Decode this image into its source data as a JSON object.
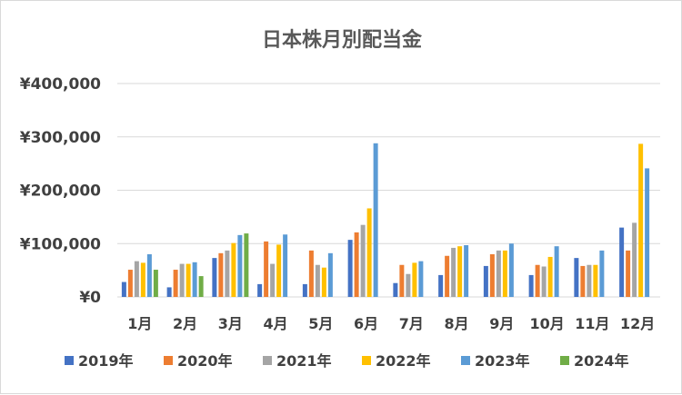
{
  "chart_data": {
    "type": "bar",
    "title": "日本株月別配当金",
    "xlabel": "",
    "ylabel": "",
    "ylim": [
      0,
      400000
    ],
    "y_ticks": [
      0,
      100000,
      200000,
      300000,
      400000
    ],
    "y_tick_labels": [
      "¥0",
      "¥100,000",
      "¥200,000",
      "¥300,000",
      "¥400,000"
    ],
    "grid": true,
    "legend": "bottom",
    "categories": [
      "1月",
      "2月",
      "3月",
      "4月",
      "5月",
      "6月",
      "7月",
      "8月",
      "9月",
      "10月",
      "11月",
      "12月"
    ],
    "series": [
      {
        "name": "2019年",
        "color": "#4472c4",
        "values": [
          28000,
          18000,
          73000,
          24000,
          24000,
          107000,
          26000,
          41000,
          58000,
          41000,
          73000,
          130000
        ]
      },
      {
        "name": "2020年",
        "color": "#ed7d31",
        "values": [
          51000,
          51000,
          82000,
          104000,
          87000,
          121000,
          60000,
          77000,
          80000,
          60000,
          58000,
          87000
        ]
      },
      {
        "name": "2021年",
        "color": "#a5a5a5",
        "values": [
          67000,
          62000,
          87000,
          62000,
          60000,
          135000,
          43000,
          92000,
          87000,
          57000,
          60000,
          139000
        ]
      },
      {
        "name": "2022年",
        "color": "#ffc000",
        "values": [
          64000,
          62000,
          101000,
          98000,
          55000,
          166000,
          64000,
          95000,
          87000,
          75000,
          60000,
          287000
        ]
      },
      {
        "name": "2023年",
        "color": "#5b9bd5",
        "values": [
          80000,
          65000,
          116000,
          117000,
          82000,
          288000,
          67000,
          97000,
          100000,
          95000,
          87000,
          241000
        ]
      },
      {
        "name": "2024年",
        "color": "#70ad47",
        "values": [
          51000,
          39000,
          119000,
          null,
          null,
          null,
          null,
          null,
          null,
          null,
          null,
          null
        ]
      }
    ]
  }
}
